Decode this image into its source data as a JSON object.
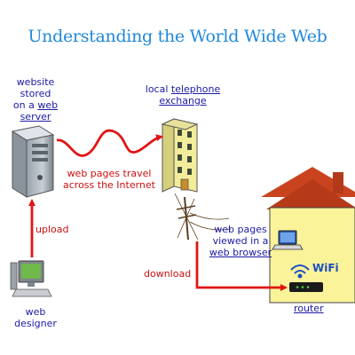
{
  "title": "Understanding the World Wide Web",
  "labels": {
    "website_stored_1": "website stored",
    "website_stored_2a": "on a",
    "website_stored_2b": "web server",
    "local": "local",
    "telephone": "telephone",
    "exchange": "exchange",
    "travel_1": "web pages travel",
    "travel_2": "across the Internet",
    "upload": "upload",
    "download": "download",
    "viewed_1": "web pages",
    "viewed_2": "viewed in a",
    "viewed_3a": "web browser",
    "wifi": "WiFi",
    "router": "router",
    "designer": "web designer"
  },
  "icons": [
    "web-server-icon",
    "telephone-exchange-building-icon",
    "telephone-pole-icon",
    "house-icon",
    "laptop-icon",
    "wifi-icon",
    "router-icon",
    "desktop-computer-icon"
  ],
  "colors": {
    "title": "#1f88d9",
    "label_blue": "#1a1aa6",
    "label_red": "#cc1111",
    "arrow_red": "#e01515",
    "house_wall": "#fbf39a",
    "roof": "#c9441e"
  }
}
